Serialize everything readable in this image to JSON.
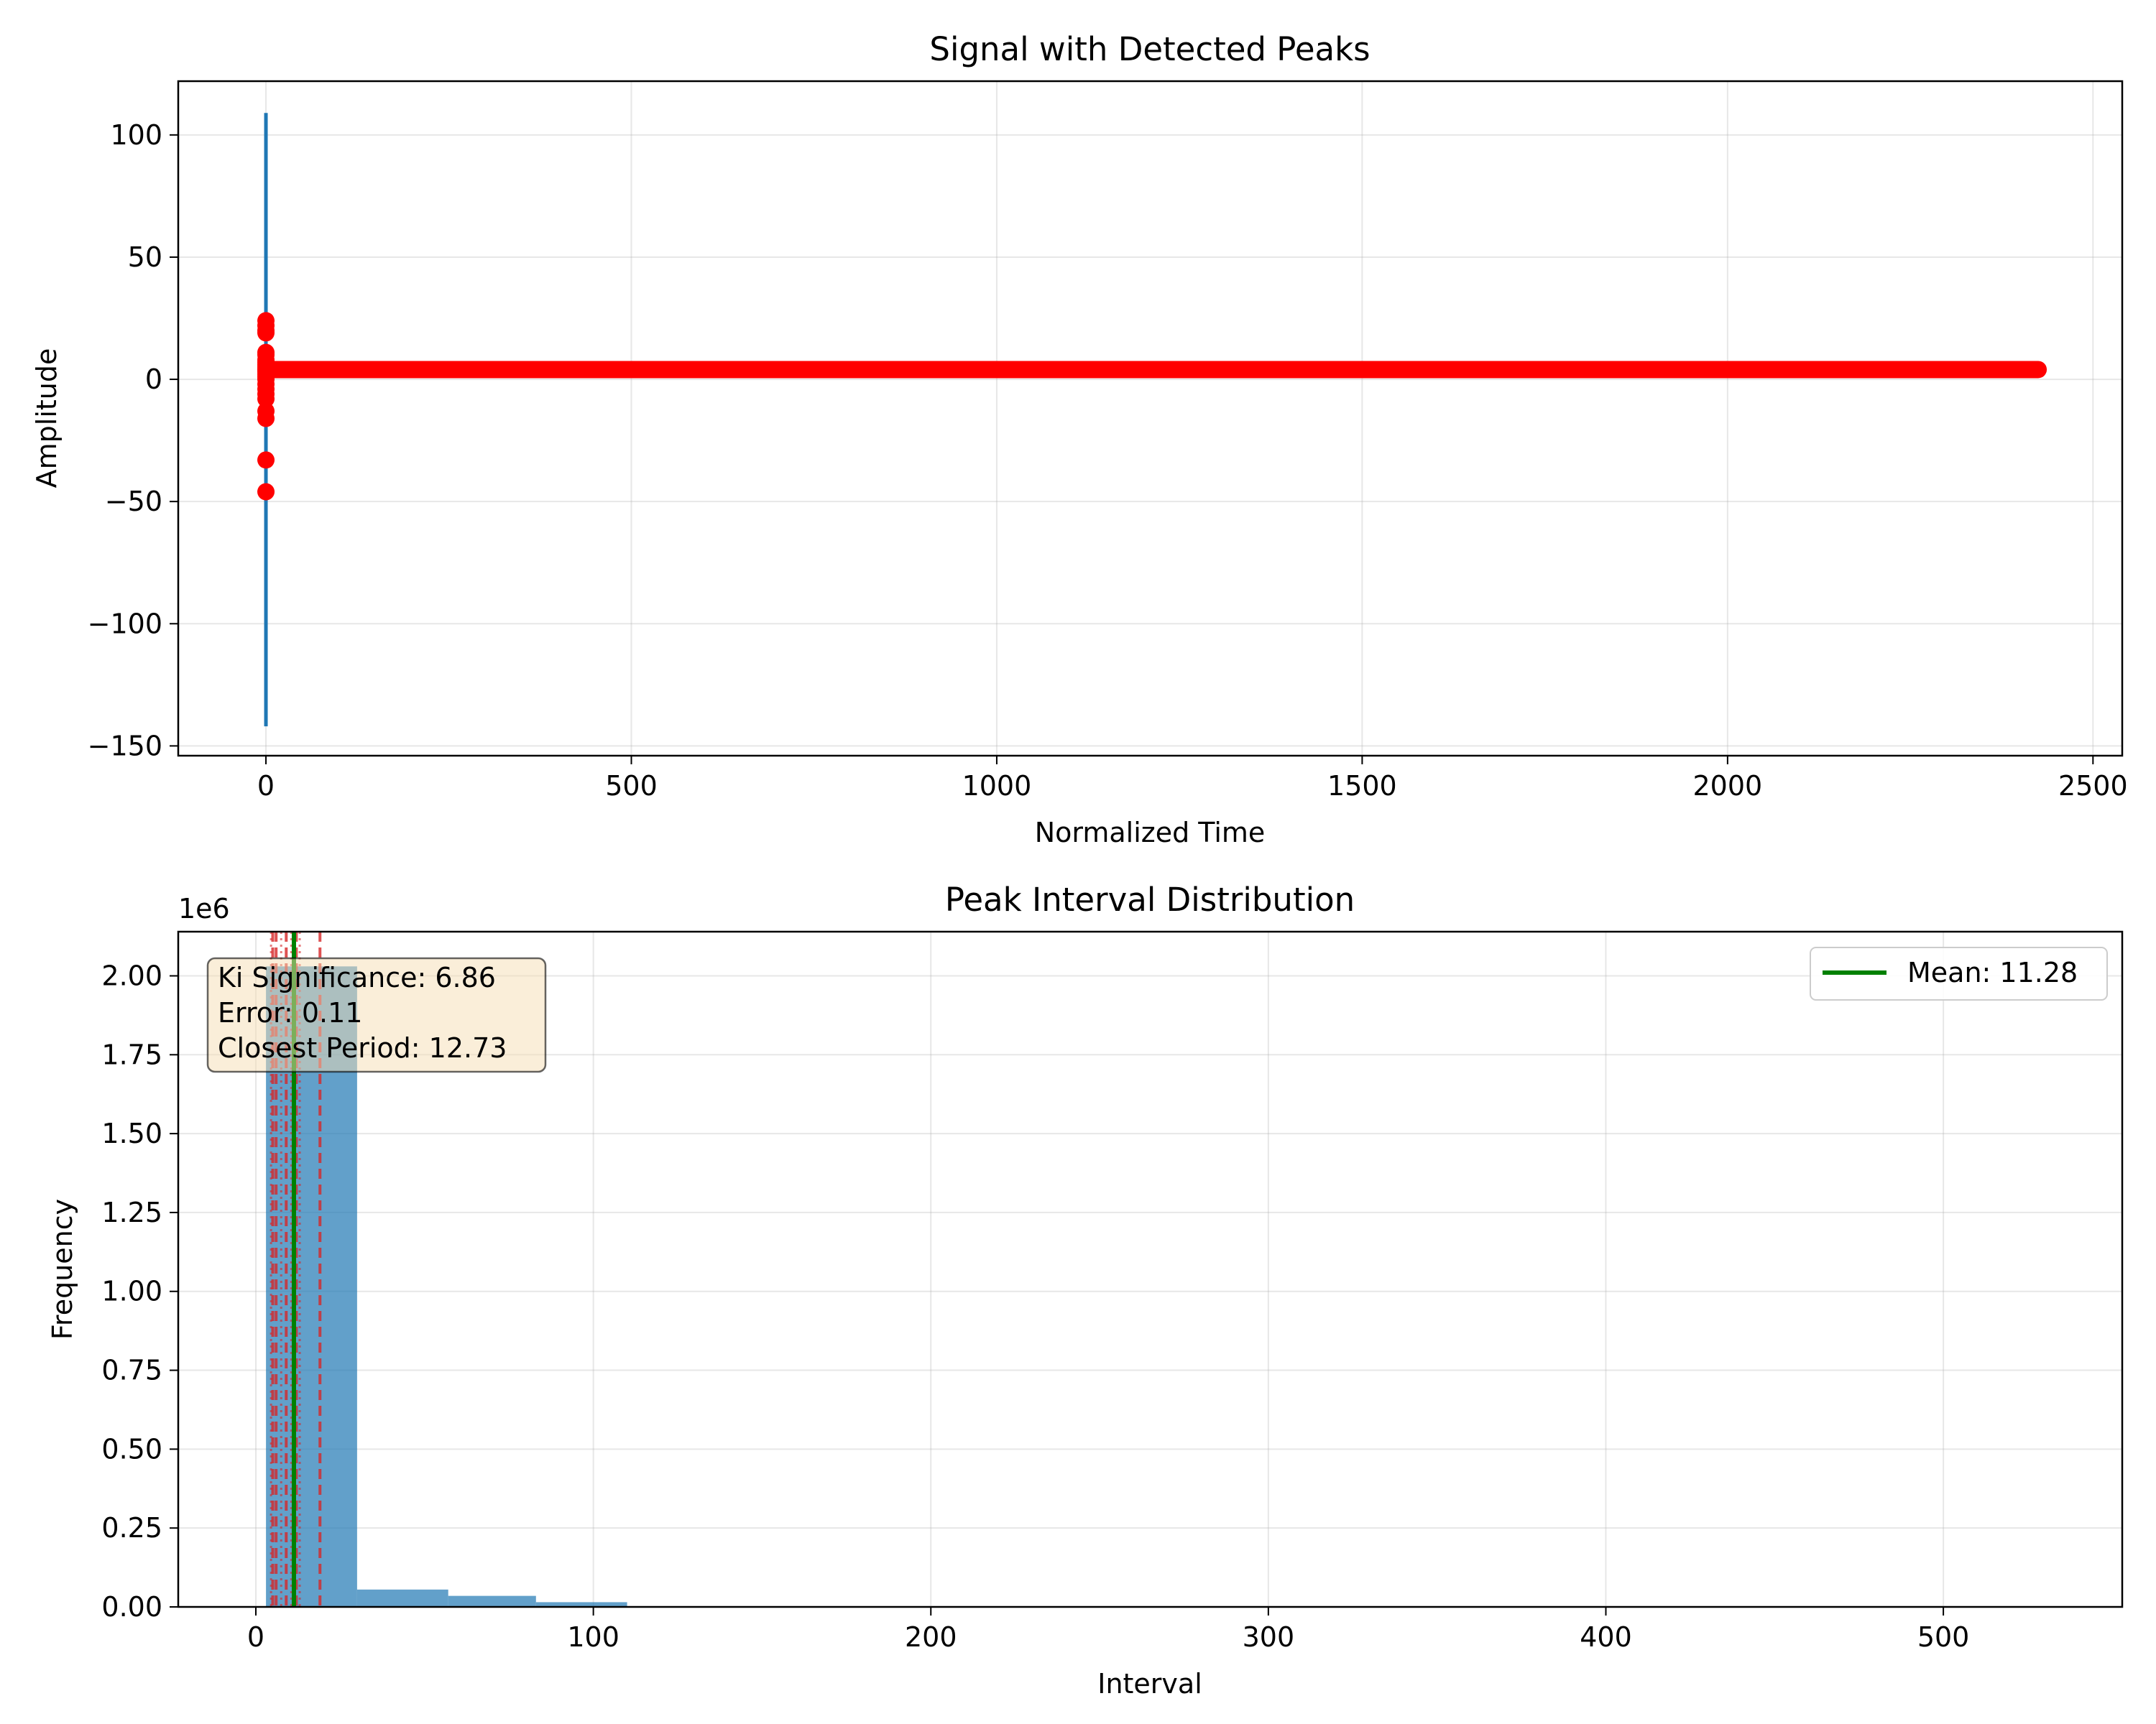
{
  "chart_data": [
    {
      "type": "line",
      "title": "Signal with Detected Peaks",
      "xlabel": "Normalized Time",
      "ylabel": "Amplitude",
      "xlim": [
        -120,
        2540
      ],
      "ylim": [
        -154,
        122
      ],
      "xticks": [
        0,
        500,
        1000,
        1500,
        2000,
        2500
      ],
      "xtick_labels": [
        "0",
        "500",
        "1000",
        "1500",
        "2000",
        "2500"
      ],
      "yticks": [
        -150,
        -100,
        -50,
        0,
        50,
        100
      ],
      "ytick_labels": [
        "−150",
        "−100",
        "−50",
        "0",
        "50",
        "100"
      ],
      "grid": true,
      "series": [
        {
          "kind": "line",
          "color": "#1f77b4",
          "x": [
            0,
            0,
            0,
            0,
            0,
            0,
            0,
            0,
            0,
            0,
            0,
            0,
            0,
            0,
            0,
            0
          ],
          "y": [
            0,
            109,
            -142,
            90,
            -120,
            60,
            -80,
            40,
            -50,
            20,
            -30,
            10,
            -15,
            5,
            -5,
            0
          ]
        },
        {
          "kind": "markers",
          "color": "#ff0000",
          "x": [
            0,
            0,
            0,
            0,
            0,
            0,
            0,
            0,
            0,
            0,
            0,
            0,
            0,
            0,
            0,
            0,
            0,
            0,
            0,
            0,
            0,
            0,
            0
          ],
          "y": [
            24,
            22,
            20,
            19,
            11,
            10,
            8,
            7,
            6,
            5,
            4,
            3,
            2,
            1,
            0,
            -2,
            -4,
            -6,
            -8,
            -13,
            -16,
            -33,
            -46
          ]
        },
        {
          "kind": "marker_band",
          "color": "#ff0000",
          "x_range": [
            0,
            2425
          ],
          "y": 4
        }
      ]
    },
    {
      "type": "bar",
      "title": "Peak Interval Distribution",
      "xlabel": "Interval",
      "ylabel": "Frequency",
      "offset_text": "1e6",
      "xlim": [
        -23,
        553
      ],
      "ylim": [
        0,
        2.14
      ],
      "xticks": [
        0,
        100,
        200,
        300,
        400,
        500
      ],
      "xtick_labels": [
        "0",
        "100",
        "200",
        "300",
        "400",
        "500"
      ],
      "yticks": [
        0,
        0.25,
        0.5,
        0.75,
        1.0,
        1.25,
        1.5,
        1.75,
        2.0
      ],
      "ytick_labels": [
        "0.00",
        "0.25",
        "0.50",
        "0.75",
        "1.00",
        "1.25",
        "1.50",
        "1.75",
        "2.00"
      ],
      "grid": true,
      "bar_color": "#1f77b4",
      "bins": [
        {
          "x0": 3,
          "x1": 30,
          "value": 2.03
        },
        {
          "x0": 30,
          "x1": 57,
          "value": 0.055
        },
        {
          "x0": 57,
          "x1": 83,
          "value": 0.035
        },
        {
          "x0": 83,
          "x1": 110,
          "value": 0.015
        }
      ],
      "mean_line": {
        "x": 11.28,
        "color": "#008000"
      },
      "dashed_lines": {
        "color": "#d62728",
        "x": [
          5,
          6,
          9,
          12,
          19
        ]
      },
      "dotted_lines": {
        "color": "#d62728",
        "x": [
          4.5,
          7.5,
          10.5,
          13
        ]
      },
      "legend": {
        "position": "top-right",
        "label": "Mean: 11.28"
      },
      "annotation": {
        "lines": [
          "Ki Significance: 6.86",
          "Error: 0.11",
          "Closest Period: 12.73"
        ],
        "position": "top-left"
      }
    }
  ]
}
